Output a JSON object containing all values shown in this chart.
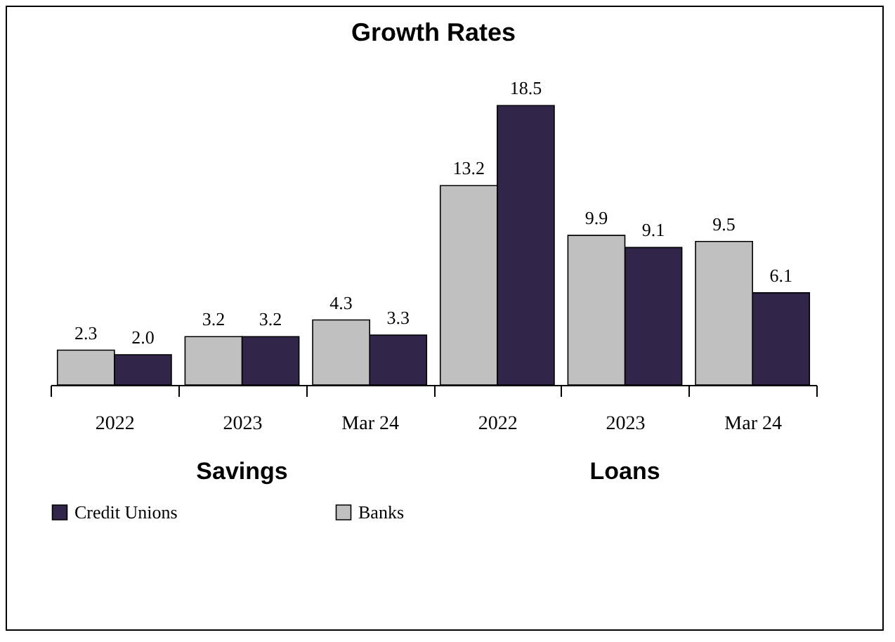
{
  "chart_data": {
    "type": "bar",
    "title": "Growth Rates",
    "categories": [
      "2022",
      "2023",
      "Mar 24",
      "2022",
      "2023",
      "Mar 24"
    ],
    "series": [
      {
        "name": "Credit Unions",
        "color": "#32254a",
        "values": [
          2.0,
          3.2,
          3.3,
          18.5,
          9.1,
          6.1
        ],
        "value_labels": [
          "2.0",
          "3.2",
          "3.3",
          "18.5",
          "9.1",
          "6.1"
        ]
      },
      {
        "name": "Banks",
        "color": "#c0c0c0",
        "values": [
          2.3,
          3.2,
          4.3,
          13.2,
          9.9,
          9.5
        ],
        "value_labels": [
          "2.3",
          "3.2",
          "4.3",
          "13.2",
          "9.9",
          "9.5"
        ]
      }
    ],
    "annotations": [
      "Savings",
      "Loans"
    ],
    "grid": false,
    "legend": "bottom"
  }
}
